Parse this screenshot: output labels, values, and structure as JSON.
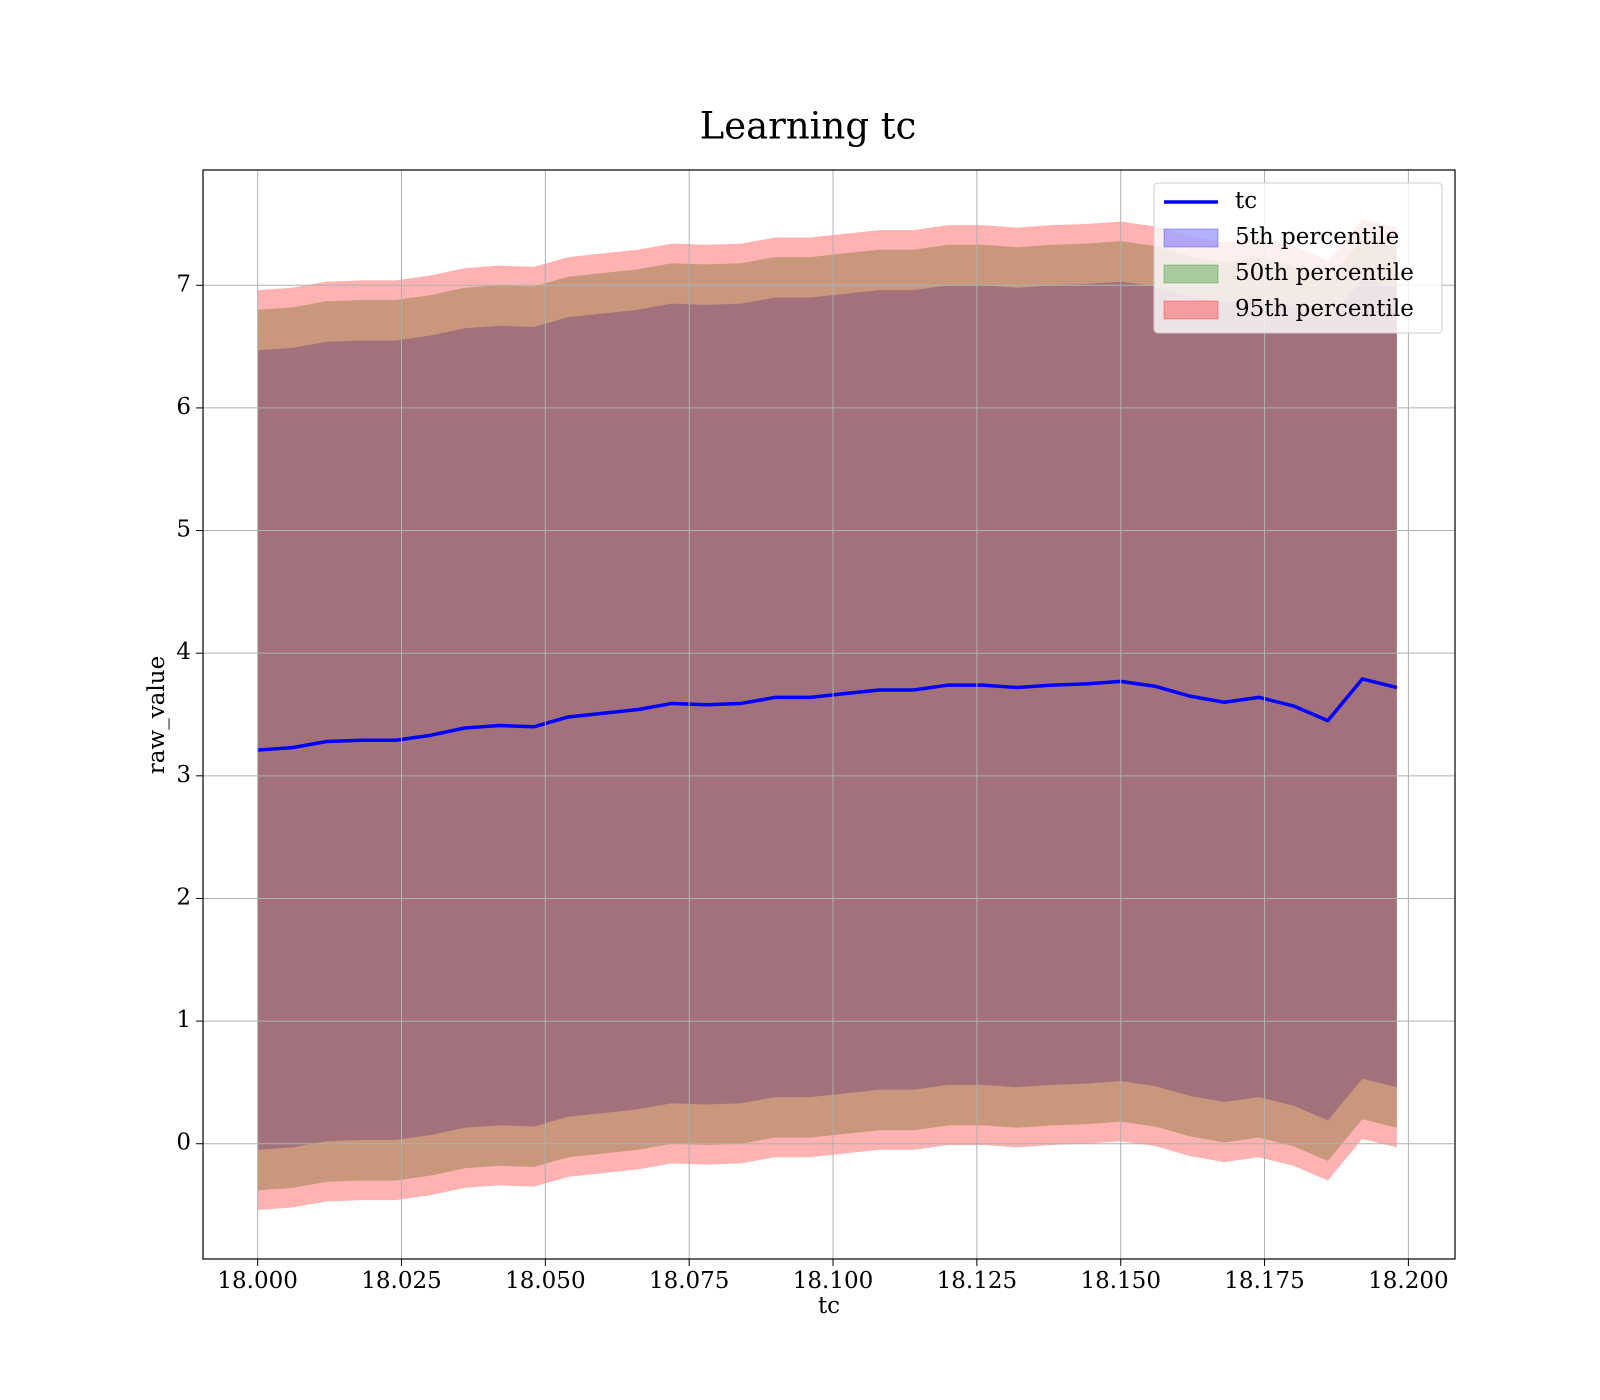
{
  "chart_data": {
    "type": "fill_between",
    "title": "Learning tc",
    "xlabel": "tc",
    "ylabel": "raw_value",
    "x": [
      18,
      18.006,
      18.012,
      18.018,
      18.024,
      18.03,
      18.036,
      18.042,
      18.048,
      18.054,
      18.06,
      18.066,
      18.072,
      18.078,
      18.084,
      18.09,
      18.096,
      18.102,
      18.108,
      18.114,
      18.12,
      18.126,
      18.132,
      18.138,
      18.144,
      18.15,
      18.156,
      18.162,
      18.168,
      18.174,
      18.18,
      18.186,
      18.192,
      18.198
    ],
    "series": [
      {
        "name": "tc",
        "kind": "line",
        "color": "#0000ff",
        "values": [
          3.21,
          3.23,
          3.28,
          3.29,
          3.29,
          3.33,
          3.39,
          3.41,
          3.4,
          3.48,
          3.51,
          3.54,
          3.59,
          3.58,
          3.59,
          3.64,
          3.64,
          3.67,
          3.7,
          3.7,
          3.74,
          3.74,
          3.72,
          3.74,
          3.75,
          3.77,
          3.73,
          3.65,
          3.6,
          3.64,
          3.57,
          3.45,
          3.79,
          3.72
        ]
      },
      {
        "name": "5th percentile",
        "kind": "band",
        "color": "#0000ff",
        "alpha": 0.3,
        "upper": [
          6.47,
          6.49,
          6.54,
          6.55,
          6.55,
          6.59,
          6.65,
          6.67,
          6.66,
          6.74,
          6.77,
          6.8,
          6.85,
          6.84,
          6.85,
          6.9,
          6.9,
          6.93,
          6.96,
          6.96,
          7.0,
          7.0,
          6.98,
          7.0,
          7.01,
          7.03,
          6.99,
          6.91,
          6.86,
          6.9,
          6.83,
          6.71,
          7.05,
          6.98
        ],
        "lower": [
          -0.05,
          -0.03,
          0.02,
          0.03,
          0.03,
          0.07,
          0.13,
          0.15,
          0.14,
          0.22,
          0.25,
          0.28,
          0.33,
          0.32,
          0.33,
          0.38,
          0.38,
          0.41,
          0.44,
          0.44,
          0.48,
          0.48,
          0.46,
          0.48,
          0.49,
          0.51,
          0.47,
          0.39,
          0.34,
          0.38,
          0.31,
          0.19,
          0.53,
          0.46
        ]
      },
      {
        "name": "50th percentile",
        "kind": "band",
        "color": "#008000",
        "alpha": 0.3,
        "upper": [
          6.8,
          6.82,
          6.87,
          6.88,
          6.88,
          6.92,
          6.98,
          7.0,
          6.99,
          7.07,
          7.1,
          7.13,
          7.18,
          7.17,
          7.18,
          7.23,
          7.23,
          7.26,
          7.29,
          7.29,
          7.33,
          7.33,
          7.31,
          7.33,
          7.34,
          7.36,
          7.32,
          7.24,
          7.19,
          7.23,
          7.16,
          7.04,
          7.38,
          7.31
        ],
        "lower": [
          -0.38,
          -0.36,
          -0.31,
          -0.3,
          -0.3,
          -0.26,
          -0.2,
          -0.18,
          -0.19,
          -0.11,
          -0.08,
          -0.05,
          0.0,
          -0.01,
          0.0,
          0.05,
          0.05,
          0.08,
          0.11,
          0.11,
          0.15,
          0.15,
          0.13,
          0.15,
          0.16,
          0.18,
          0.14,
          0.06,
          0.01,
          0.05,
          -0.02,
          -0.14,
          0.2,
          0.13
        ]
      },
      {
        "name": "95th percentile",
        "kind": "band",
        "color": "#ff0000",
        "alpha": 0.3,
        "upper": [
          6.96,
          6.98,
          7.03,
          7.04,
          7.04,
          7.08,
          7.14,
          7.16,
          7.15,
          7.23,
          7.26,
          7.29,
          7.34,
          7.33,
          7.34,
          7.39,
          7.39,
          7.42,
          7.45,
          7.45,
          7.49,
          7.49,
          7.47,
          7.49,
          7.5,
          7.52,
          7.48,
          7.4,
          7.35,
          7.39,
          7.32,
          7.2,
          7.54,
          7.47
        ],
        "lower": [
          -0.54,
          -0.52,
          -0.47,
          -0.46,
          -0.46,
          -0.42,
          -0.36,
          -0.34,
          -0.35,
          -0.27,
          -0.24,
          -0.21,
          -0.16,
          -0.17,
          -0.16,
          -0.11,
          -0.11,
          -0.08,
          -0.05,
          -0.05,
          -0.01,
          -0.01,
          -0.03,
          -0.01,
          0.0,
          0.02,
          -0.02,
          -0.1,
          -0.15,
          -0.11,
          -0.18,
          -0.3,
          0.04,
          -0.03
        ]
      }
    ],
    "xlim": [
      17.9905,
      18.2081
    ],
    "ylim": [
      -0.94,
      7.94
    ],
    "xticks": [
      {
        "value": 18.0,
        "label": "18.000"
      },
      18.025,
      {
        "value": 18.05,
        "label": "18.050"
      },
      18.075,
      {
        "value": 18.1,
        "label": "18.100"
      },
      18.125,
      {
        "value": 18.15,
        "label": "18.150"
      },
      18.175,
      {
        "value": 18.2,
        "label": "18.200"
      }
    ],
    "yticks": [
      0,
      1,
      2,
      3,
      4,
      5,
      6,
      7
    ],
    "grid": true,
    "legend": "upper right"
  }
}
